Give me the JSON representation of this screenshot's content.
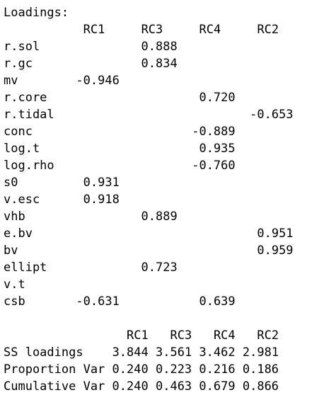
{
  "loadings": {
    "heading": "Loadings:",
    "columns": [
      "RC1",
      "RC3",
      "RC4",
      "RC2"
    ],
    "rows": [
      {
        "name": "r.sol",
        "values": [
          "",
          "0.888",
          "",
          ""
        ]
      },
      {
        "name": "r.gc",
        "values": [
          "",
          "0.834",
          "",
          ""
        ]
      },
      {
        "name": "mv",
        "values": [
          "-0.946",
          "",
          "",
          ""
        ]
      },
      {
        "name": "r.core",
        "values": [
          "",
          "",
          "0.720",
          ""
        ]
      },
      {
        "name": "r.tidal",
        "values": [
          "",
          "",
          "",
          "-0.653"
        ]
      },
      {
        "name": "conc",
        "values": [
          "",
          "",
          "-0.889",
          ""
        ]
      },
      {
        "name": "log.t",
        "values": [
          "",
          "",
          "0.935",
          ""
        ]
      },
      {
        "name": "log.rho",
        "values": [
          "",
          "",
          "-0.760",
          ""
        ]
      },
      {
        "name": "s0",
        "values": [
          "0.931",
          "",
          "",
          ""
        ]
      },
      {
        "name": "v.esc",
        "values": [
          "0.918",
          "",
          "",
          ""
        ]
      },
      {
        "name": "vhb",
        "values": [
          "",
          "0.889",
          "",
          ""
        ]
      },
      {
        "name": "e.bv",
        "values": [
          "",
          "",
          "",
          "0.951"
        ]
      },
      {
        "name": "bv",
        "values": [
          "",
          "",
          "",
          "0.959"
        ]
      },
      {
        "name": "ellipt",
        "values": [
          "",
          "0.723",
          "",
          ""
        ]
      },
      {
        "name": "v.t",
        "values": [
          "",
          "",
          "",
          ""
        ]
      },
      {
        "name": "csb",
        "values": [
          "-0.631",
          "",
          "0.639",
          ""
        ]
      }
    ]
  },
  "summary": {
    "columns": [
      "RC1",
      "RC3",
      "RC4",
      "RC2"
    ],
    "rows": [
      {
        "name": "SS loadings",
        "values": [
          "3.844",
          "3.561",
          "3.462",
          "2.981"
        ]
      },
      {
        "name": "Proportion Var",
        "values": [
          "0.240",
          "0.223",
          "0.216",
          "0.186"
        ]
      },
      {
        "name": "Cumulative Var",
        "values": [
          "0.240",
          "0.463",
          "0.679",
          "0.866"
        ]
      }
    ]
  }
}
